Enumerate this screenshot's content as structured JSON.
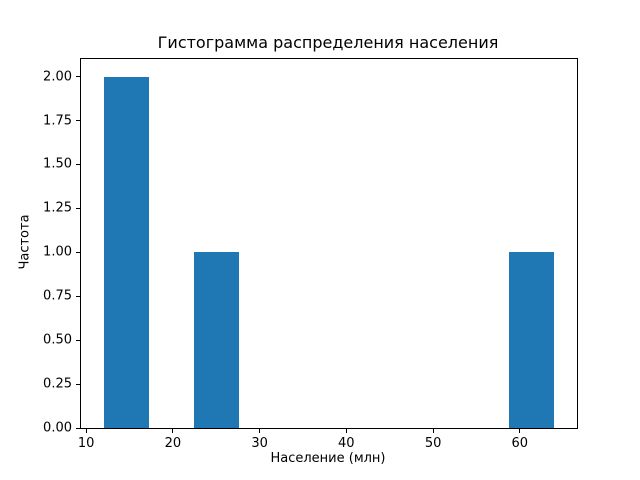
{
  "chart_data": {
    "type": "bar",
    "chart_kind": "histogram",
    "title": "Гистограмма распределения населения",
    "xlabel": "Население (млн)",
    "ylabel": "Частота",
    "bar_color": "#1f77b4",
    "background_color": "#ffffff",
    "grid": false,
    "legend_position": "none",
    "xlim": [
      9.4,
      66.6
    ],
    "ylim": [
      0,
      2.1
    ],
    "xtick_values": [
      10,
      20,
      30,
      40,
      50,
      60
    ],
    "xtick_labels": [
      "10",
      "20",
      "30",
      "40",
      "50",
      "60"
    ],
    "ytick_values": [
      0,
      0.25,
      0.5,
      0.75,
      1.0,
      1.25,
      1.5,
      1.75,
      2.0
    ],
    "ytick_labels": [
      "0.00",
      "0.25",
      "0.50",
      "0.75",
      "1.00",
      "1.25",
      "1.50",
      "1.75",
      "2.00"
    ],
    "bars": [
      {
        "x0": 12.0,
        "x1": 17.2,
        "count": 2
      },
      {
        "x0": 22.4,
        "x1": 27.6,
        "count": 1
      },
      {
        "x0": 58.8,
        "x1": 64.0,
        "count": 1
      }
    ]
  }
}
